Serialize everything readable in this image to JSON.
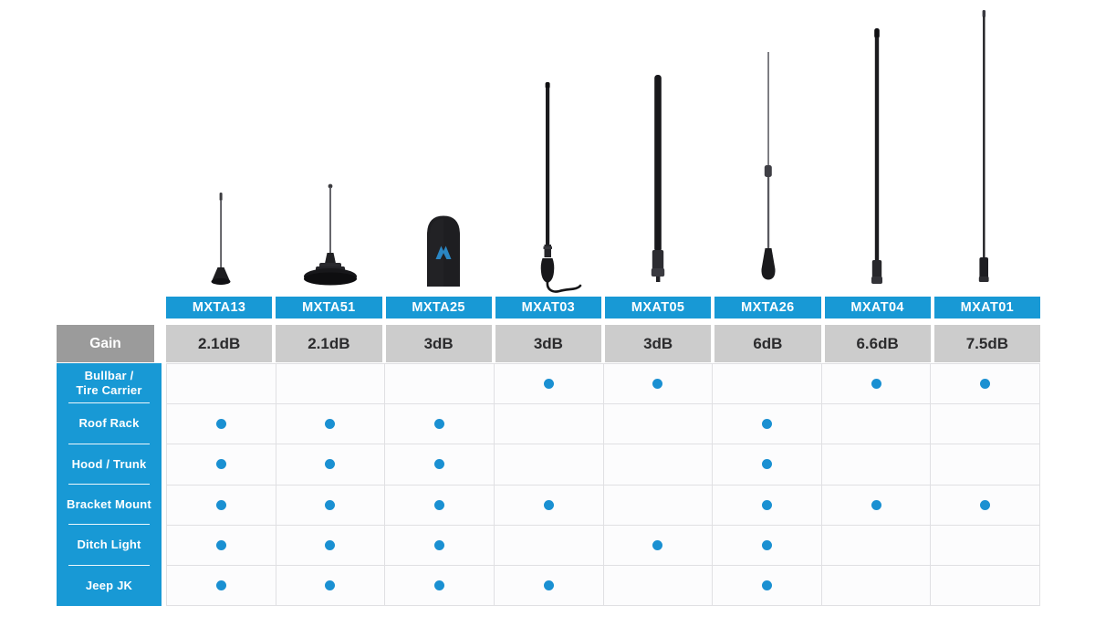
{
  "colors": {
    "brand_blue": "#1899d5",
    "dot_blue": "#1a90d2",
    "gain_header_gray": "#9b9b9b",
    "gain_cell_gray": "#cccccc",
    "grid_line": "#e0e0e3",
    "matrix_cell_bg": "#fcfcfd",
    "antenna_black": "#1b1b1e",
    "antenna_steel": "#5a5a60"
  },
  "gain_label": "Gain",
  "products": [
    {
      "model": "MXTA13",
      "gain": "2.1dB",
      "icon": "magnet-mount-short-whip-antenna"
    },
    {
      "model": "MXTA51",
      "gain": "2.1dB",
      "icon": "large-magnet-base-whip-antenna"
    },
    {
      "model": "MXTA25",
      "gain": "3dB",
      "icon": "stubby-ghost-antenna-with-logo"
    },
    {
      "model": "MXAT03",
      "gain": "3dB",
      "icon": "fiberglass-whip-antenna-with-cable"
    },
    {
      "model": "MXAT05",
      "gain": "3dB",
      "icon": "thick-whip-antenna"
    },
    {
      "model": "MXTA26",
      "gain": "6dB",
      "icon": "thin-whip-antenna-with-spring"
    },
    {
      "model": "MXAT04",
      "gain": "6.6dB",
      "icon": "tall-whip-antenna"
    },
    {
      "model": "MXAT01",
      "gain": "7.5dB",
      "icon": "extra-tall-thin-whip-antenna"
    }
  ],
  "mounts": [
    {
      "label": "Bullbar /\nTire Carrier"
    },
    {
      "label": "Roof Rack"
    },
    {
      "label": "Hood / Trunk"
    },
    {
      "label": "Bracket Mount"
    },
    {
      "label": "Ditch Light"
    },
    {
      "label": "Jeep JK"
    }
  ],
  "chart_data": {
    "type": "table",
    "columns": [
      "MXTA13",
      "MXTA51",
      "MXTA25",
      "MXAT03",
      "MXAT05",
      "MXTA26",
      "MXAT04",
      "MXAT01"
    ],
    "gain_row_label": "Gain",
    "gain_labels": [
      "2.1dB",
      "2.1dB",
      "3dB",
      "3dB",
      "3dB",
      "6dB",
      "6.6dB",
      "7.5dB"
    ],
    "gain_db": [
      2.1,
      2.1,
      3,
      3,
      3,
      6,
      6.6,
      7.5
    ],
    "row_labels": [
      "Bullbar / Tire Carrier",
      "Roof Rack",
      "Hood / Trunk",
      "Bracket Mount",
      "Ditch Light",
      "Jeep JK"
    ],
    "matrix": [
      [
        0,
        0,
        0,
        1,
        1,
        0,
        1,
        1
      ],
      [
        1,
        1,
        1,
        0,
        0,
        1,
        0,
        0
      ],
      [
        1,
        1,
        1,
        0,
        0,
        1,
        0,
        0
      ],
      [
        1,
        1,
        1,
        1,
        0,
        1,
        1,
        1
      ],
      [
        1,
        1,
        1,
        0,
        1,
        1,
        0,
        0
      ],
      [
        1,
        1,
        1,
        1,
        0,
        1,
        0,
        0
      ]
    ],
    "cell_marker": "blue-dot-means-compatible"
  }
}
